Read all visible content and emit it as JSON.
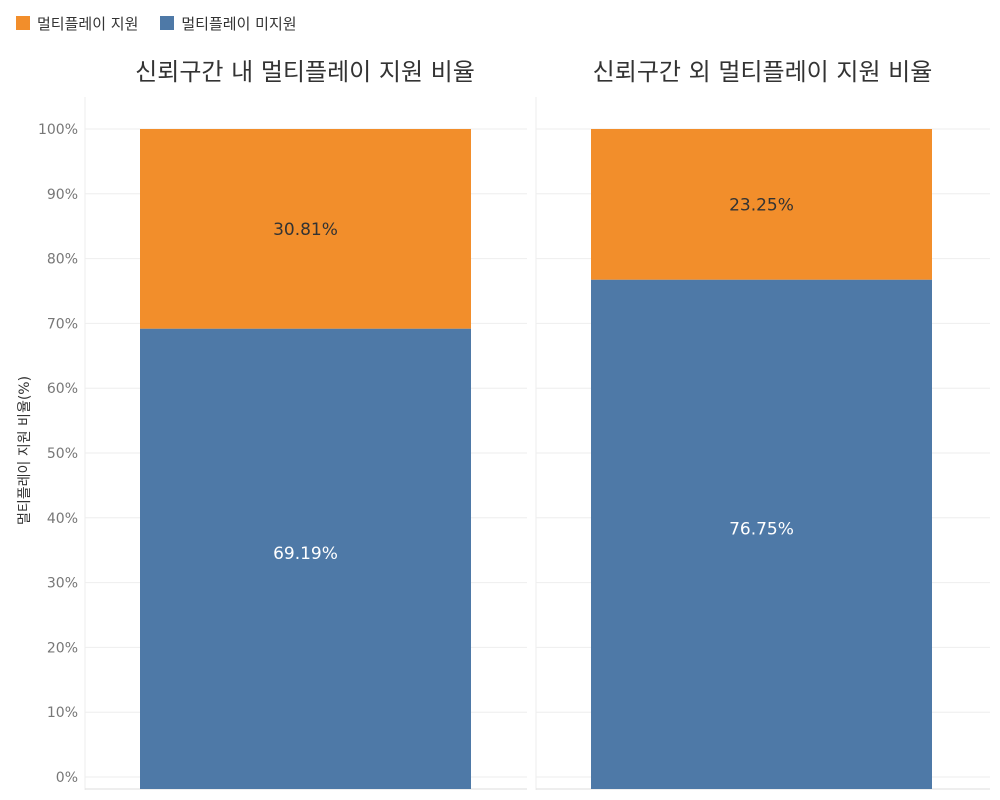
{
  "legend": [
    {
      "label": "멀티플레이 지원",
      "color": "#f28e2b"
    },
    {
      "label": "멀티플레이 미지원",
      "color": "#4e79a7"
    }
  ],
  "chart_data": {
    "type": "bar",
    "stacked": true,
    "ylabel": "멀티플레이 지원 비율(%)",
    "ylim": [
      0,
      100
    ],
    "yticks": [
      "0%",
      "10%",
      "20%",
      "30%",
      "40%",
      "50%",
      "60%",
      "70%",
      "80%",
      "90%",
      "100%"
    ],
    "legend_position": "top-left",
    "grid": true,
    "panels": [
      {
        "title": "신뢰구간 내 멀티플레이 지원 비율",
        "series": [
          {
            "name": "멀티플레이 미지원",
            "value": 69.19,
            "label": "69.19%",
            "color": "#4e79a7"
          },
          {
            "name": "멀티플레이 지원",
            "value": 30.81,
            "label": "30.81%",
            "color": "#f28e2b"
          }
        ]
      },
      {
        "title": "신뢰구간 외 멀티플레이 지원 비율",
        "series": [
          {
            "name": "멀티플레이 미지원",
            "value": 76.75,
            "label": "76.75%",
            "color": "#4e79a7"
          },
          {
            "name": "멀티플레이 지원",
            "value": 23.25,
            "label": "23.25%",
            "color": "#f28e2b"
          }
        ]
      }
    ]
  }
}
